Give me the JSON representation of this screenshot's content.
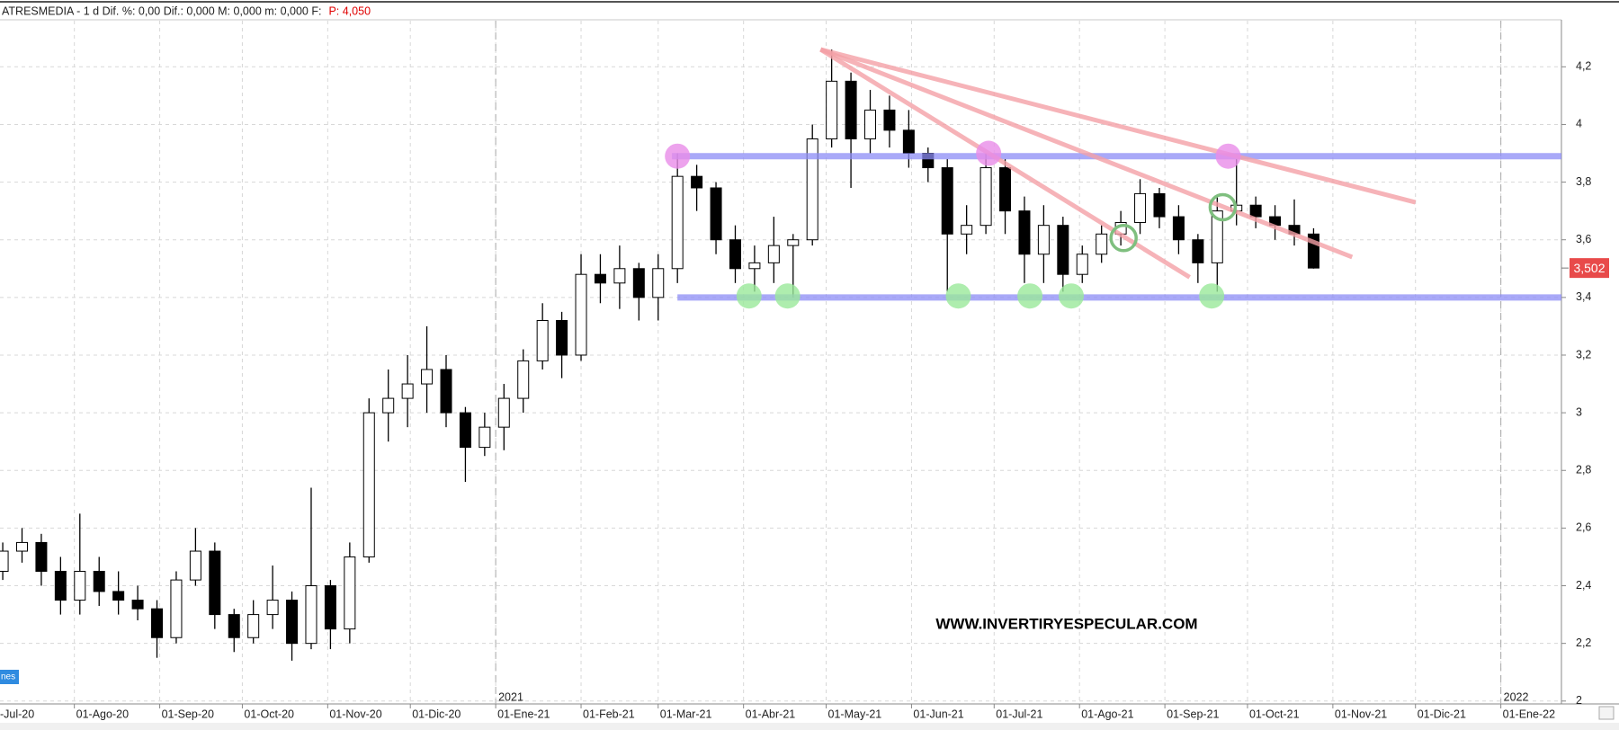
{
  "chart_data": {
    "type": "candlestick",
    "title": "ATRESMEDIA -  1 d  Dif. %: 0,00  Dif.: 0,000  M: 0,000  m: 0,000  F:",
    "price_note": "P: 4,050",
    "watermark": "WWW.INVERTIRYESPECULAR.COM",
    "tag": "nes",
    "last_price": {
      "value": 3.502,
      "label": "3,502"
    },
    "xlim": [
      "05-Jul-20",
      "23-Ene-22"
    ],
    "ylim": [
      1.99,
      4.36
    ],
    "grid": true,
    "xticks": [
      {
        "value": "01-Jul-20",
        "label": "-Jul-20"
      },
      "01-Ago-20",
      "01-Sep-20",
      "01-Oct-20",
      "01-Nov-20",
      "01-Dic-20",
      "01-Ene-21",
      "01-Feb-21",
      "01-Mar-21",
      "01-Abr-21",
      "01-May-21",
      "01-Jun-21",
      "01-Jul-21",
      "01-Ago-21",
      "01-Sep-21",
      "01-Oct-21",
      "01-Nov-21",
      "01-Dic-21",
      "01-Ene-22"
    ],
    "year_labels": [
      {
        "value": "01-Ene-21",
        "label": "2021"
      },
      {
        "value": "01-Ene-22",
        "label": "2022"
      }
    ],
    "yticks": [
      2,
      {
        "value": 2.2,
        "label": "2,2"
      },
      {
        "value": 2.4,
        "label": "2,4"
      },
      {
        "value": 2.6,
        "label": "2,6"
      },
      {
        "value": 2.8,
        "label": "2,8"
      },
      3,
      {
        "value": 3.2,
        "label": "3,2"
      },
      {
        "value": 3.4,
        "label": "3,4"
      },
      {
        "value": 3.6,
        "label": "3,6"
      },
      {
        "value": 3.8,
        "label": "3,8"
      },
      4,
      {
        "value": 4.2,
        "label": "4,2"
      }
    ],
    "candles": {
      "up_color": "#ffffff",
      "down_color": "#000000",
      "x": [
        "06-Jul-20",
        "13-Jul-20",
        "20-Jul-20",
        "27-Jul-20",
        "03-Ago-20",
        "10-Ago-20",
        "17-Ago-20",
        "24-Ago-20",
        "31-Ago-20",
        "07-Sep-20",
        "14-Sep-20",
        "21-Sep-20",
        "28-Sep-20",
        "05-Oct-20",
        "12-Oct-20",
        "19-Oct-20",
        "26-Oct-20",
        "02-Nov-20",
        "09-Nov-20",
        "16-Nov-20",
        "23-Nov-20",
        "30-Nov-20",
        "07-Dic-20",
        "14-Dic-20",
        "21-Dic-20",
        "28-Dic-20",
        "04-Ene-21",
        "11-Ene-21",
        "18-Ene-21",
        "25-Ene-21",
        "01-Feb-21",
        "08-Feb-21",
        "15-Feb-21",
        "22-Feb-21",
        "01-Mar-21",
        "08-Mar-21",
        "15-Mar-21",
        "22-Mar-21",
        "29-Mar-21",
        "05-Abr-21",
        "12-Abr-21",
        "19-Abr-21",
        "26-Abr-21",
        "03-May-21",
        "10-May-21",
        "17-May-21",
        "24-May-21",
        "31-May-21",
        "07-Jun-21",
        "14-Jun-21",
        "21-Jun-21",
        "28-Jun-21",
        "05-Jul-21",
        "12-Jul-21",
        "19-Jul-21",
        "26-Jul-21",
        "02-Ago-21",
        "09-Ago-21",
        "16-Ago-21",
        "23-Ago-21",
        "30-Ago-21",
        "06-Sep-21",
        "13-Sep-21",
        "20-Sep-21",
        "27-Sep-21",
        "04-Oct-21",
        "11-Oct-21",
        "18-Oct-21",
        "25-Oct-21"
      ],
      "open": [
        2.45,
        2.52,
        2.55,
        2.45,
        2.35,
        2.45,
        2.38,
        2.35,
        2.32,
        2.22,
        2.42,
        2.52,
        2.3,
        2.22,
        2.3,
        2.35,
        2.2,
        2.4,
        2.25,
        2.5,
        3.0,
        3.05,
        3.1,
        3.15,
        3.0,
        2.88,
        2.95,
        3.05,
        3.18,
        3.32,
        3.2,
        3.48,
        3.45,
        3.5,
        3.4,
        3.5,
        3.82,
        3.78,
        3.6,
        3.5,
        3.52,
        3.58,
        3.6,
        3.95,
        4.15,
        3.95,
        4.05,
        3.98,
        3.9,
        3.85,
        3.62,
        3.65,
        3.85,
        3.7,
        3.55,
        3.65,
        3.48,
        3.55,
        3.62,
        3.66,
        3.76,
        3.68,
        3.6,
        3.52,
        3.7,
        3.72,
        3.68,
        3.65,
        3.62
      ],
      "high": [
        2.55,
        2.6,
        2.58,
        2.5,
        2.65,
        2.5,
        2.45,
        2.4,
        2.35,
        2.45,
        2.6,
        2.55,
        2.32,
        2.35,
        2.47,
        2.38,
        2.74,
        2.42,
        2.55,
        3.05,
        3.15,
        3.2,
        3.3,
        3.2,
        3.02,
        3.0,
        3.1,
        3.22,
        3.38,
        3.35,
        3.55,
        3.55,
        3.58,
        3.52,
        3.55,
        3.9,
        3.86,
        3.8,
        3.65,
        3.58,
        3.68,
        3.62,
        4.0,
        4.26,
        4.18,
        4.12,
        4.1,
        4.05,
        3.92,
        3.88,
        3.72,
        3.9,
        3.88,
        3.75,
        3.72,
        3.68,
        3.58,
        3.65,
        3.7,
        3.81,
        3.78,
        3.72,
        3.62,
        3.75,
        3.88,
        3.75,
        3.72,
        3.74,
        3.64
      ],
      "low": [
        2.42,
        2.48,
        2.4,
        2.3,
        2.3,
        2.33,
        2.3,
        2.28,
        2.15,
        2.2,
        2.4,
        2.25,
        2.17,
        2.2,
        2.25,
        2.14,
        2.18,
        2.18,
        2.2,
        2.48,
        2.9,
        2.95,
        3.0,
        2.95,
        2.76,
        2.85,
        2.87,
        3.0,
        3.15,
        3.12,
        3.18,
        3.38,
        3.36,
        3.32,
        3.32,
        3.45,
        3.7,
        3.55,
        3.45,
        3.42,
        3.45,
        3.4,
        3.58,
        3.92,
        3.78,
        3.9,
        3.92,
        3.85,
        3.8,
        3.42,
        3.55,
        3.62,
        3.62,
        3.45,
        3.45,
        3.42,
        3.45,
        3.52,
        3.58,
        3.62,
        3.64,
        3.55,
        3.45,
        3.42,
        3.65,
        3.64,
        3.6,
        3.58,
        3.5
      ],
      "close": [
        2.52,
        2.55,
        2.45,
        2.35,
        2.45,
        2.38,
        2.35,
        2.32,
        2.22,
        2.42,
        2.52,
        2.3,
        2.22,
        2.3,
        2.35,
        2.2,
        2.4,
        2.25,
        2.5,
        3.0,
        3.05,
        3.1,
        3.15,
        3.0,
        2.88,
        2.95,
        3.05,
        3.18,
        3.32,
        3.2,
        3.48,
        3.45,
        3.5,
        3.4,
        3.5,
        3.82,
        3.78,
        3.6,
        3.5,
        3.52,
        3.58,
        3.6,
        3.95,
        4.15,
        3.95,
        4.05,
        3.98,
        3.9,
        3.85,
        3.62,
        3.65,
        3.85,
        3.7,
        3.55,
        3.65,
        3.48,
        3.55,
        3.62,
        3.66,
        3.76,
        3.68,
        3.6,
        3.52,
        3.7,
        3.72,
        3.68,
        3.65,
        3.62,
        3.502
      ]
    },
    "levels": [
      {
        "value": 3.89,
        "from": "06-Mar-21",
        "color": "#8c8cf5"
      },
      {
        "value": 3.4,
        "from": "08-Mar-21",
        "color": "#8c8cf5"
      }
    ],
    "trendline_color": "#f4a0a6",
    "trendlines": [
      {
        "x": [
          "29-Abr-21",
          "01-Dic-21"
        ],
        "y": [
          4.26,
          3.73
        ]
      },
      {
        "x": [
          "29-Abr-21",
          "08-Nov-21"
        ],
        "y": [
          4.26,
          3.54
        ]
      },
      {
        "x": [
          "29-Abr-21",
          "10-Sep-21"
        ],
        "y": [
          4.26,
          3.47
        ]
      }
    ],
    "markers": [
      {
        "x": "08-Mar-21",
        "y": 3.89,
        "color": "#e98ce9",
        "filled": true
      },
      {
        "x": "29-Jun-21",
        "y": 3.9,
        "color": "#e98ce9",
        "filled": true
      },
      {
        "x": "24-Sep-21",
        "y": 3.89,
        "color": "#e98ce9",
        "filled": true
      },
      {
        "x": "03-Abr-21",
        "y": 3.405,
        "color": "#9ae89a",
        "filled": true
      },
      {
        "x": "17-Abr-21",
        "y": 3.405,
        "color": "#9ae89a",
        "filled": true
      },
      {
        "x": "18-Jun-21",
        "y": 3.405,
        "color": "#9ae89a",
        "filled": true
      },
      {
        "x": "14-Jul-21",
        "y": 3.405,
        "color": "#9ae89a",
        "filled": true
      },
      {
        "x": "29-Jul-21",
        "y": 3.405,
        "color": "#9ae89a",
        "filled": true
      },
      {
        "x": "18-Sep-21",
        "y": 3.405,
        "color": "#9ae89a",
        "filled": true
      },
      {
        "x": "17-Ago-21",
        "y": 3.606,
        "color": "#7fbf7f",
        "filled": false
      },
      {
        "x": "22-Sep-21",
        "y": 3.713,
        "color": "#7fbf7f",
        "filled": false
      }
    ]
  }
}
